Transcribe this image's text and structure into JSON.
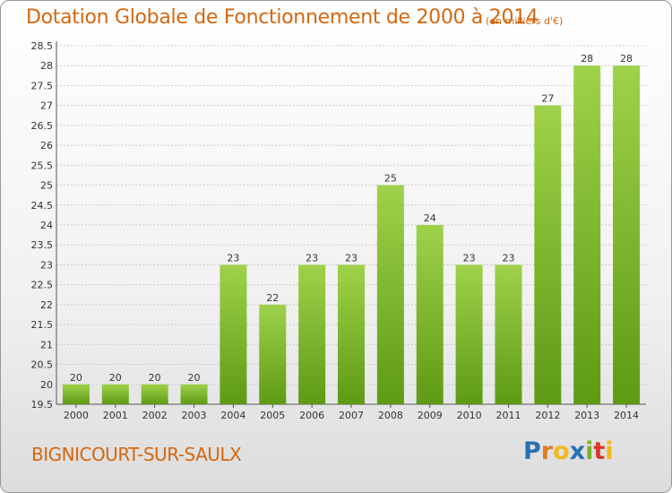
{
  "header": {
    "title": "Dotation Globale de Fonctionnement de 2000 à 2014",
    "subtitle": "(en milliers d'€)"
  },
  "footer": {
    "commune": "BIGNICOURT-SUR-SAULX",
    "logo": "Proxiti"
  },
  "colors": {
    "bar_top": "#9fd24a",
    "bar_bottom": "#5e9a14",
    "title": "#d4670f",
    "grid": "#cccccc"
  },
  "chart_data": {
    "type": "bar",
    "title": "Dotation Globale de Fonctionnement de 2000 à 2014",
    "subtitle": "(en milliers d'€)",
    "categories": [
      "2000",
      "2001",
      "2002",
      "2003",
      "2004",
      "2005",
      "2006",
      "2007",
      "2008",
      "2009",
      "2010",
      "2011",
      "2012",
      "2013",
      "2014"
    ],
    "values": [
      20,
      20,
      20,
      20,
      23,
      22,
      23,
      23,
      25,
      24,
      23,
      23,
      27,
      28,
      28
    ],
    "data_labels": [
      "20",
      "20",
      "20",
      "20",
      "23",
      "22",
      "23",
      "23",
      "25",
      "24",
      "23",
      "23",
      "27",
      "28",
      "28"
    ],
    "ylim": [
      19.5,
      28.5
    ],
    "yticks": [
      19.5,
      20,
      20.5,
      21,
      21.5,
      22,
      22.5,
      23,
      23.5,
      24,
      24.5,
      25,
      25.5,
      26,
      26.5,
      27,
      27.5,
      28,
      28.5
    ],
    "ytick_labels": [
      "19.5",
      "20",
      "20.5",
      "21",
      "21.5",
      "22",
      "22.5",
      "23",
      "23.5",
      "24",
      "24.5",
      "25",
      "25.5",
      "26",
      "26.5",
      "27",
      "27.5",
      "28",
      "28.5"
    ],
    "grid": true,
    "legend": "none"
  }
}
